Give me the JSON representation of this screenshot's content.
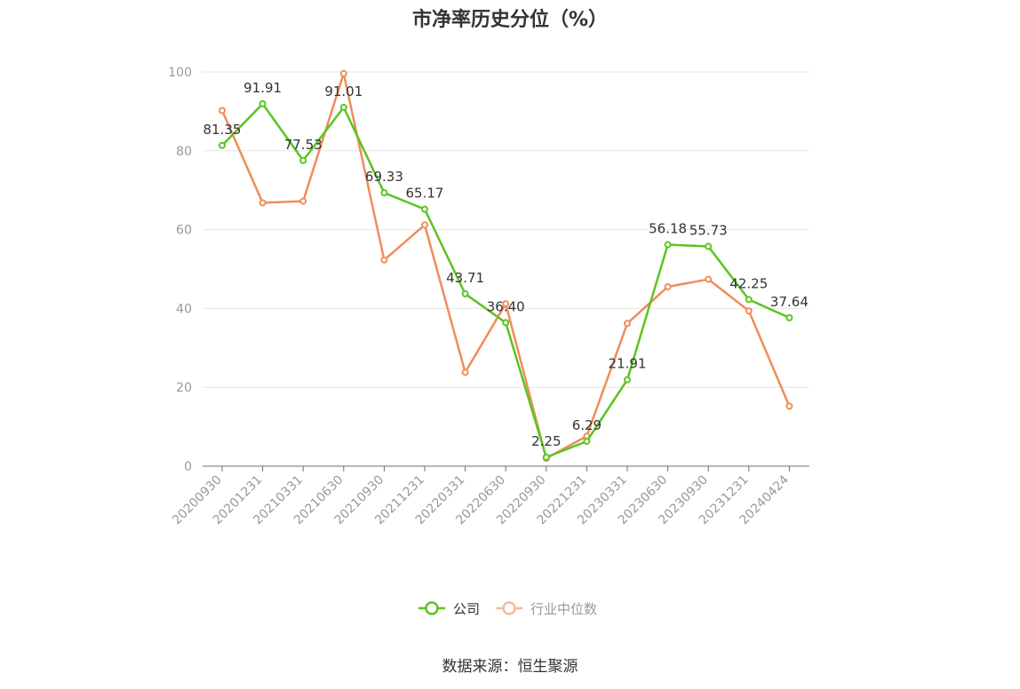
{
  "chart_data": {
    "type": "line",
    "title": "市净率历史分位（%）",
    "categories": [
      "20200930",
      "20201231",
      "20210331",
      "20210630",
      "20210930",
      "20211231",
      "20220331",
      "20220630",
      "20220930",
      "20221231",
      "20230331",
      "20230630",
      "20230930",
      "20231231",
      "20240424"
    ],
    "series": [
      {
        "name": "公司",
        "color": "#5ac423",
        "values": [
          81.35,
          91.91,
          77.53,
          91.01,
          69.33,
          65.17,
          43.71,
          36.4,
          2.25,
          6.29,
          21.91,
          56.18,
          55.73,
          42.25,
          37.64
        ],
        "labels": [
          "81.35",
          "91.91",
          "77.53",
          "91.01",
          "69.33",
          "65.17",
          "43.71",
          "36.40",
          "2.25",
          "6.29",
          "21.91",
          "56.18",
          "55.73",
          "42.25",
          "37.64"
        ]
      },
      {
        "name": "行业中位数",
        "color": "#f08c5a",
        "values": [
          90.2,
          66.8,
          67.2,
          99.6,
          52.3,
          61.2,
          23.8,
          41.2,
          2.0,
          7.6,
          36.2,
          45.5,
          47.4,
          39.4,
          15.2
        ]
      }
    ],
    "yticks": [
      0,
      20,
      40,
      60,
      80,
      100
    ],
    "ylim": [
      0,
      100
    ],
    "grid": true,
    "legend": "bottom-center"
  },
  "footer": {
    "source": "数据来源：恒生聚源"
  }
}
